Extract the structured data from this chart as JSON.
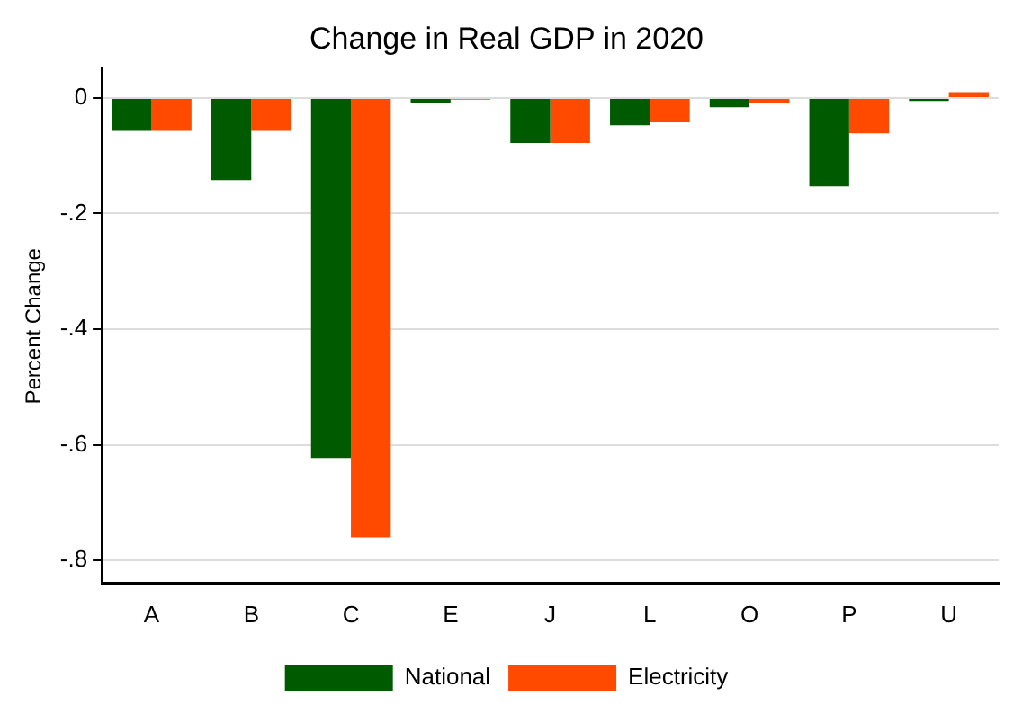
{
  "chart_data": {
    "type": "bar",
    "title": "Change in Real GDP in 2020",
    "ylabel": "Percent Change",
    "categories": [
      "A",
      "B",
      "C",
      "E",
      "J",
      "L",
      "O",
      "P",
      "U"
    ],
    "series": [
      {
        "name": "National",
        "color": "#005a00",
        "values": [
          -0.057,
          -0.142,
          -0.623,
          -0.008,
          -0.078,
          -0.047,
          -0.016,
          -0.153,
          -0.005
        ]
      },
      {
        "name": "Electricity",
        "color": "#ff4a00",
        "values": [
          -0.057,
          -0.057,
          -0.76,
          -0.003,
          -0.078,
          -0.042,
          -0.008,
          -0.061,
          0.01
        ]
      }
    ],
    "ylim": [
      -0.84,
      0.05
    ],
    "yticks": [
      0,
      {
        "value": -0.2,
        "label": "-.2"
      },
      {
        "value": -0.4,
        "label": "-.4"
      },
      {
        "value": -0.6,
        "label": "-.6"
      },
      {
        "value": -0.8,
        "label": "-.8"
      }
    ],
    "grid": "y",
    "legend": "bottom"
  }
}
